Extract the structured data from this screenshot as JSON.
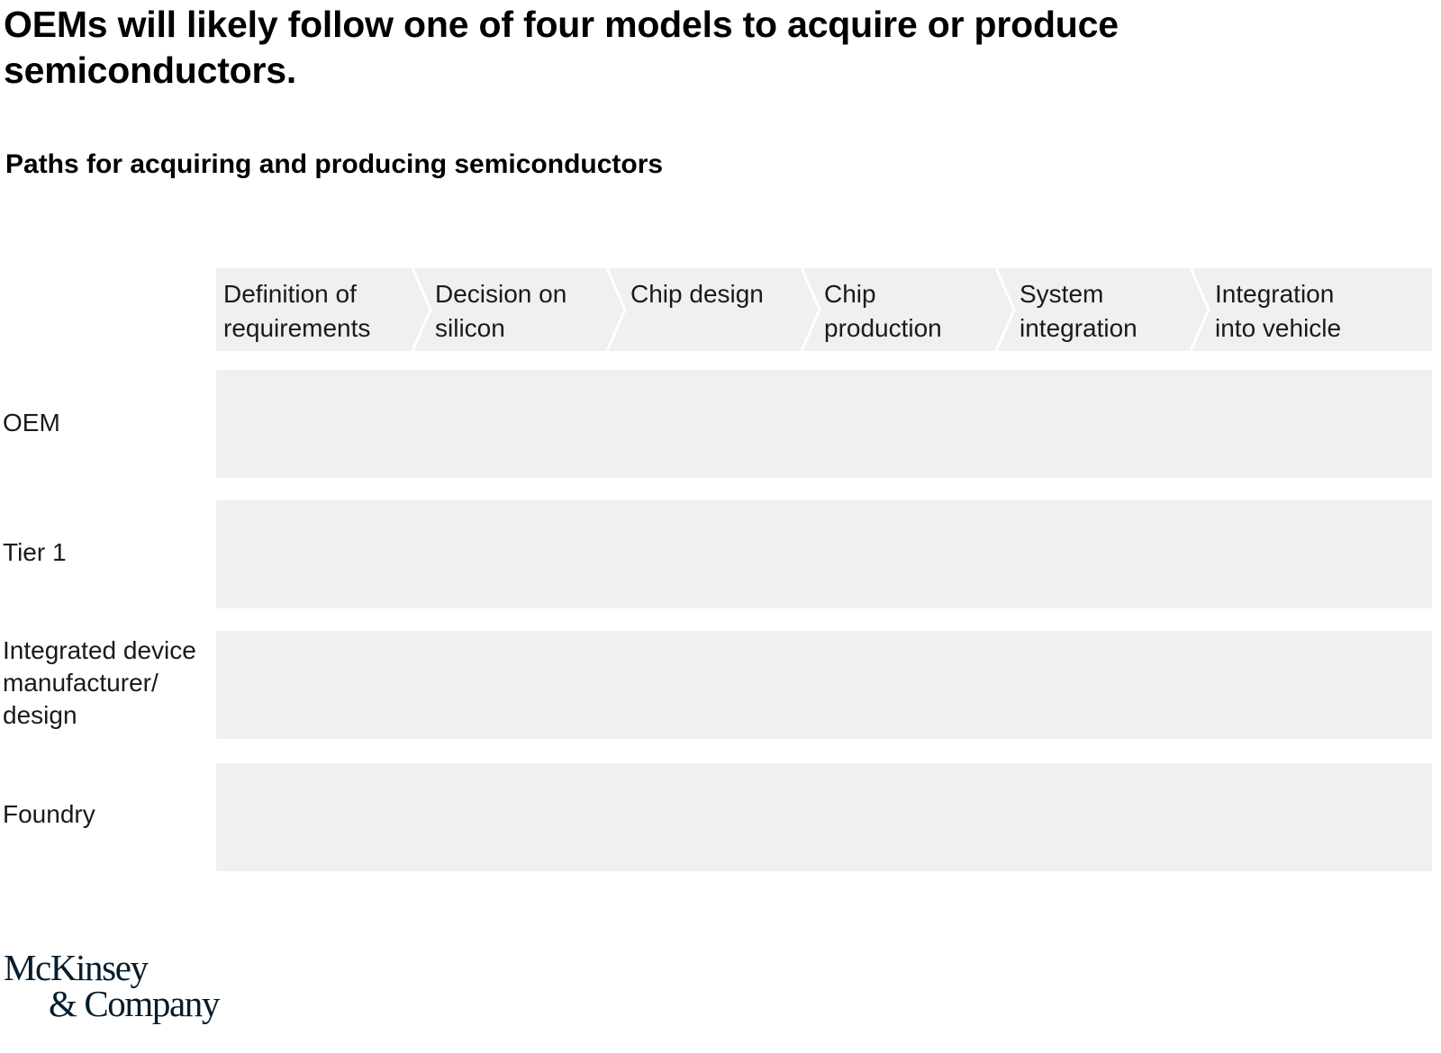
{
  "title": "OEMs will likely follow one of four models to acquire or produce semiconductors.",
  "subtitle": "Paths for acquiring and producing semiconductors",
  "stages": [
    {
      "label": "Definition of\nrequirements"
    },
    {
      "label": "Decision on\nsilicon"
    },
    {
      "label": "Chip design"
    },
    {
      "label": "Chip\nproduction"
    },
    {
      "label": "System\nintegration"
    },
    {
      "label": "Integration\ninto vehicle"
    }
  ],
  "rows": [
    {
      "label": "OEM"
    },
    {
      "label": "Tier 1"
    },
    {
      "label": "Integrated device\nmanufacturer/\ndesign"
    },
    {
      "label": "Foundry"
    }
  ],
  "logo": {
    "line1": "McKinsey",
    "line2": "& Company"
  },
  "colors": {
    "band": "#f0f0f0",
    "chevron_border": "#ffffff",
    "text": "#000000",
    "logo": "#051c2c"
  }
}
